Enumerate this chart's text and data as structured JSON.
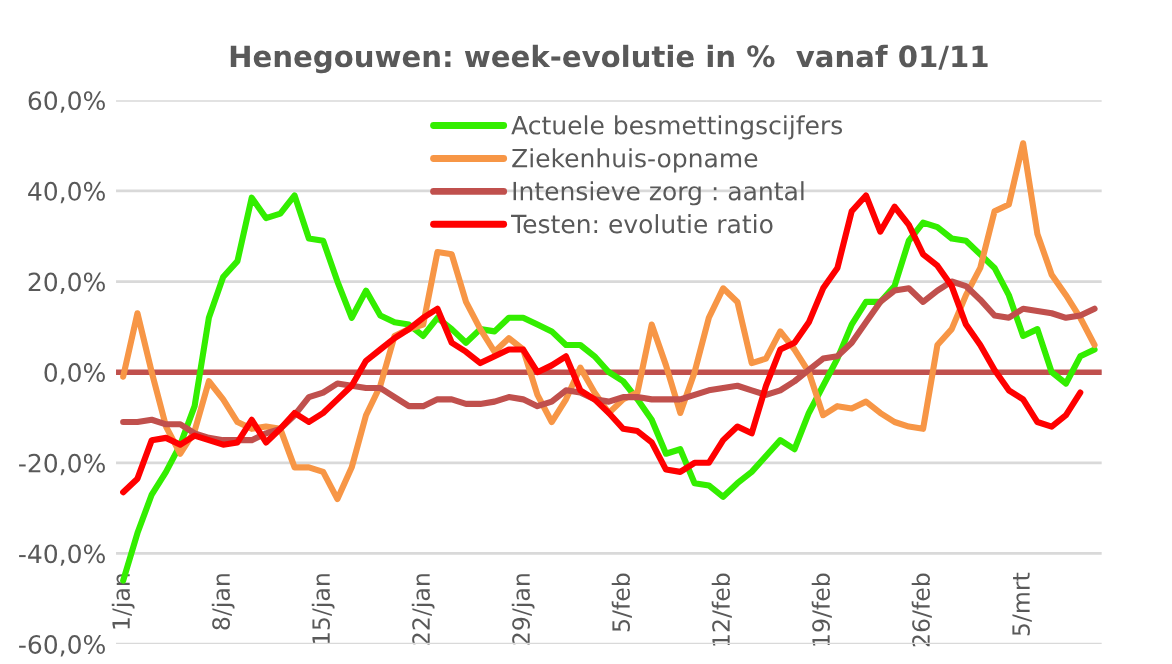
{
  "chart_data": {
    "type": "line",
    "title": "Henegouwen: week-evolutie in %  vanaf 01/11",
    "categories": [
      "1/jan",
      null,
      null,
      null,
      null,
      null,
      null,
      "8/jan",
      null,
      null,
      null,
      null,
      null,
      null,
      "15/jan",
      null,
      null,
      null,
      null,
      null,
      null,
      "22/jan",
      null,
      null,
      null,
      null,
      null,
      null,
      "29/jan",
      null,
      null,
      null,
      null,
      null,
      null,
      "5/feb",
      null,
      null,
      null,
      null,
      null,
      null,
      "12/feb",
      null,
      null,
      null,
      null,
      null,
      null,
      "19/feb",
      null,
      null,
      null,
      null,
      null,
      null,
      "26/feb",
      null,
      null,
      null,
      null,
      null,
      null,
      "5/mrt",
      null,
      null,
      null,
      null,
      null
    ],
    "series": [
      {
        "name": "Actuele besmettingscijfers",
        "color": "#33ee00",
        "values": [
          -46,
          -35.5,
          -27,
          -22,
          -16,
          -7.5,
          12,
          21,
          24.5,
          38.5,
          34,
          35,
          39,
          29.5,
          29,
          20,
          12,
          18,
          12.5,
          11,
          10.5,
          8,
          12,
          9.5,
          6.5,
          9.5,
          9,
          12,
          12,
          10.5,
          9,
          6,
          6,
          3.5,
          0,
          -2,
          -6,
          -10.5,
          -18,
          -17,
          -24.5,
          -25,
          -27.5,
          -24.5,
          -22,
          -18.5,
          -15,
          -17,
          -9,
          -3,
          3,
          10.5,
          15.5,
          15.5,
          19,
          29,
          33,
          32,
          29.5,
          29,
          26,
          23,
          17,
          8,
          9.5,
          0,
          -2.5,
          3.5,
          5
        ]
      },
      {
        "name": "Ziekenhuis-opname",
        "color": "#f79646",
        "values": [
          -1,
          13,
          0,
          -12,
          -18,
          -13,
          -2,
          -6,
          -11,
          -12.5,
          -12,
          -12.5,
          -21,
          -21,
          -22,
          -28,
          -21,
          -9.5,
          -3,
          8,
          9.5,
          10.5,
          26.5,
          26,
          15.5,
          9.5,
          4.5,
          7.5,
          5,
          -5,
          -11,
          -6,
          1,
          -4.5,
          -9,
          -6,
          -4.5,
          10.5,
          1.5,
          -9,
          0,
          12,
          18.5,
          15.5,
          2,
          3,
          9,
          5,
          0,
          -9.5,
          -7.5,
          -8,
          -6.5,
          -9,
          -11,
          -12,
          -12.5,
          6,
          9.5,
          17,
          23,
          35.5,
          37,
          50.5,
          30.5,
          21.5,
          17,
          12,
          6
        ]
      },
      {
        "name": "Intensieve zorg : aantal",
        "color": "#c0504d",
        "values": [
          -11,
          -11,
          -10.5,
          -11.5,
          -11.5,
          -13.5,
          -14.5,
          -15,
          -15,
          -15,
          -13.5,
          -12.5,
          -9.5,
          -5.5,
          -4.5,
          -2.5,
          -3,
          -3.5,
          -3.5,
          -5.5,
          -7.5,
          -7.5,
          -6,
          -6,
          -7,
          -7,
          -6.5,
          -5.5,
          -6,
          -7.5,
          -6.5,
          -4,
          -4.5,
          -6,
          -6.5,
          -5.5,
          -5.5,
          -6,
          -6,
          -6,
          -5,
          -4,
          -3.5,
          -3,
          -4,
          -5,
          -4,
          -2,
          0.5,
          3,
          3.5,
          6.5,
          11,
          15.5,
          18,
          18.5,
          15.5,
          18,
          20,
          19,
          16,
          12.5,
          12,
          14,
          13.5,
          13,
          12,
          12.5,
          14
        ]
      },
      {
        "name": "Testen: evolutie ratio",
        "color": "#ff0000",
        "values": [
          -26.5,
          -23.5,
          -15,
          -14.5,
          -16,
          -14,
          -15,
          -16,
          -15.5,
          -10.5,
          -15.5,
          -12.5,
          -9,
          -11,
          -9,
          -6,
          -3,
          2.5,
          5,
          7.5,
          9.5,
          12,
          14,
          6.5,
          4.5,
          2,
          3.5,
          5,
          5,
          0,
          1.5,
          3.5,
          -4,
          -6,
          -9,
          -12.5,
          -13,
          -15.5,
          -21.5,
          -22,
          -20,
          -20,
          -15,
          -12,
          -13.5,
          -3,
          5,
          6.5,
          11,
          18.5,
          23,
          35.5,
          39,
          31,
          36.5,
          32.5,
          26,
          23.5,
          19,
          10.5,
          6,
          0.5,
          -4,
          -6,
          -11,
          -12,
          -9.5,
          -4.5,
          null
        ]
      }
    ],
    "ylim": [
      -60,
      60
    ],
    "yticks": [
      {
        "value": -60,
        "label": "-60,0%"
      },
      {
        "value": -40,
        "label": "-40,0%"
      },
      {
        "value": -20,
        "label": "-20,0%"
      },
      {
        "value": 0,
        "label": "0,0%"
      },
      {
        "value": 20,
        "label": "20,0%"
      },
      {
        "value": 40,
        "label": "40,0%"
      },
      {
        "value": 60,
        "label": "60,0%"
      }
    ],
    "ref_lines": [
      {
        "axis": "y",
        "value": 0,
        "color": "#c0504d"
      }
    ],
    "grid": "y",
    "legend": "top",
    "line_style": "solid",
    "marker": "none"
  }
}
